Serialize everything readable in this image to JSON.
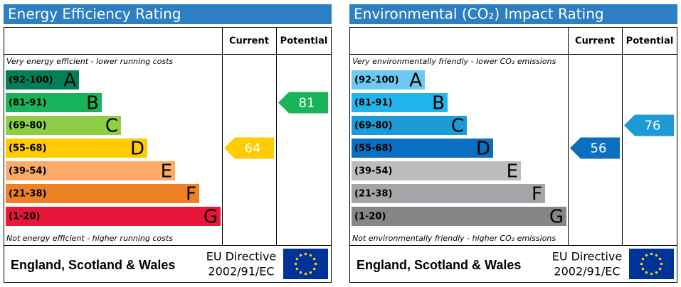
{
  "chart_data": [
    {
      "type": "rating",
      "title": "Energy Efficiency Rating",
      "column_headers": [
        "Current",
        "Potential"
      ],
      "top_note": "Very energy efficient - lower running costs",
      "bottom_note": "Not energy efficient - higher running costs",
      "bands": [
        {
          "range": "(92-100)",
          "letter": "A",
          "color": "#008054"
        },
        {
          "range": "(81-91)",
          "letter": "B",
          "color": "#19b459"
        },
        {
          "range": "(69-80)",
          "letter": "C",
          "color": "#8dce46"
        },
        {
          "range": "(55-68)",
          "letter": "D",
          "color": "#ffcc00"
        },
        {
          "range": "(39-54)",
          "letter": "E",
          "color": "#fcaa65"
        },
        {
          "range": "(21-38)",
          "letter": "F",
          "color": "#ef8023"
        },
        {
          "range": "(1-20)",
          "letter": "G",
          "color": "#e9153b"
        }
      ],
      "current": 64,
      "potential": 81,
      "region": "England, Scotland & Wales",
      "directive": "EU Directive",
      "directive_code": "2002/91/EC"
    },
    {
      "type": "rating",
      "title": "Environmental (CO₂) Impact Rating",
      "column_headers": [
        "Current",
        "Potential"
      ],
      "top_note": "Very environmentally friendly - lower CO₂ emissions",
      "bottom_note": "Not environmentally friendly - higher CO₂ emissions",
      "bands": [
        {
          "range": "(92-100)",
          "letter": "A",
          "color": "#6cc9f1"
        },
        {
          "range": "(81-91)",
          "letter": "B",
          "color": "#22b5eb"
        },
        {
          "range": "(69-80)",
          "letter": "C",
          "color": "#1c9ad6"
        },
        {
          "range": "(55-68)",
          "letter": "D",
          "color": "#0a6fc0"
        },
        {
          "range": "(39-54)",
          "letter": "E",
          "color": "#bbbdbf"
        },
        {
          "range": "(21-38)",
          "letter": "F",
          "color": "#a3a5a8"
        },
        {
          "range": "(1-20)",
          "letter": "G",
          "color": "#858688"
        }
      ],
      "current": 56,
      "potential": 76,
      "region": "England, Scotland & Wales",
      "directive": "EU Directive",
      "directive_code": "2002/91/EC"
    }
  ]
}
